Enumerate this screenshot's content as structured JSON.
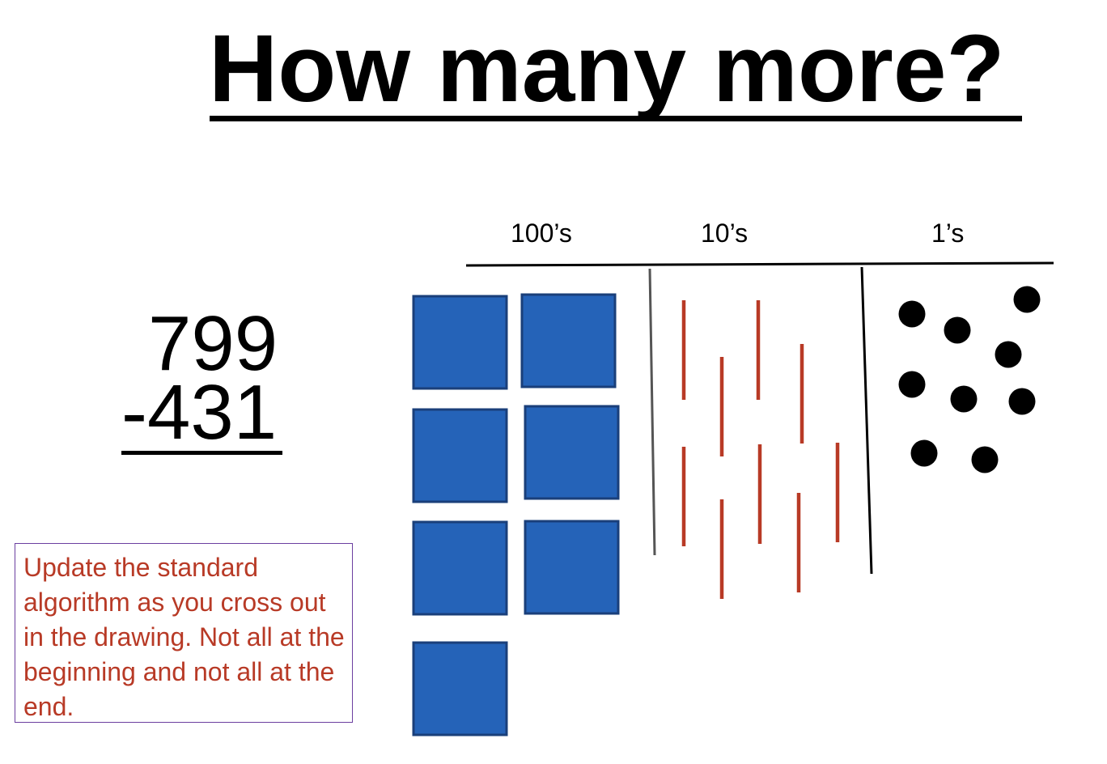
{
  "slide": {
    "title": "How many more?"
  },
  "problem": {
    "minuend": "799",
    "subtrahend": "-431"
  },
  "place_value": {
    "hundreds_label": "100’s",
    "tens_label": "10’s",
    "ones_label": "1’s",
    "hundreds_count": 7,
    "tens_count": 9,
    "ones_count": 9
  },
  "note": {
    "text": "Update the standard algorithm as you cross out in the drawing.  Not all at the beginning and not all at the end."
  },
  "colors": {
    "hundreds_block_fill": "#2563b8",
    "hundreds_block_border": "#1a3f7a",
    "tens_stick": "#b83a26",
    "ones_dot": "#000000",
    "note_text": "#b83a26",
    "note_border": "#6b3fa0"
  }
}
